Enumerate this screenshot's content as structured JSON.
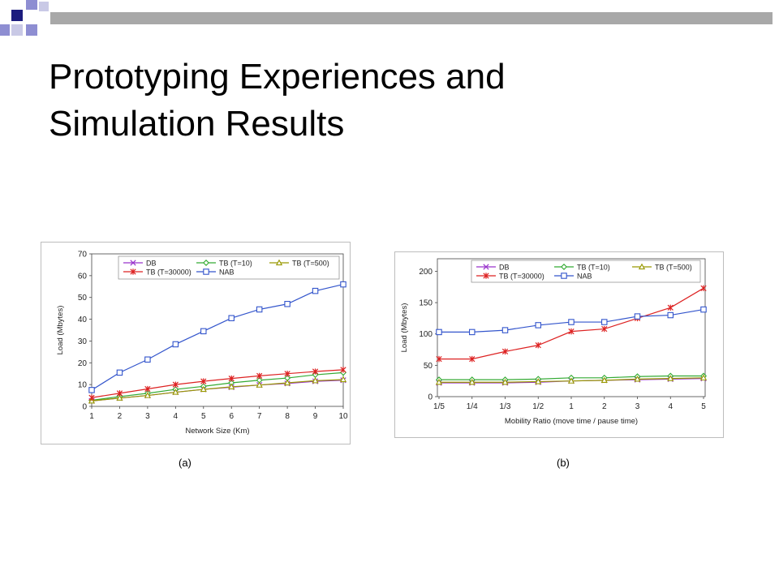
{
  "slide": {
    "title_line1": "Prototyping Experiences and",
    "title_line2": "Simulation Results",
    "accent_colors": {
      "navy": "#1c1c7e",
      "lavender": "#8e8ed2",
      "bar_gray": "#a8a8a8"
    }
  },
  "chart_data": [
    {
      "type": "line",
      "caption": "(a)",
      "xlabel": "Network Size (Km)",
      "ylabel": "Load (Mbytes)",
      "categories": [
        "1",
        "2",
        "3",
        "4",
        "5",
        "6",
        "7",
        "8",
        "9",
        "10"
      ],
      "ylim": [
        0,
        70
      ],
      "yticks": [
        0,
        10,
        20,
        30,
        40,
        50,
        60,
        70
      ],
      "grid": false,
      "legend": "top",
      "series": [
        {
          "name": "DB",
          "color": "#9933cc",
          "marker": "x",
          "values": [
            2.5,
            3.8,
            5,
            6.5,
            7.8,
            8.8,
            9.8,
            10.5,
            11.5,
            12
          ]
        },
        {
          "name": "TB (T=10)",
          "color": "#33aa33",
          "marker": "diamond",
          "values": [
            2.8,
            4.5,
            6,
            7.8,
            9.2,
            10.8,
            12,
            13,
            14.5,
            15.5
          ]
        },
        {
          "name": "TB (T=500)",
          "color": "#999900",
          "marker": "triangle",
          "values": [
            2.5,
            3.8,
            5,
            6.5,
            7.8,
            9,
            9.8,
            10.8,
            11.8,
            12.3
          ]
        },
        {
          "name": "TB (T=30000)",
          "color": "#dd2222",
          "marker": "star",
          "values": [
            4,
            6,
            8,
            10,
            11.5,
            12.8,
            14,
            15,
            16,
            16.8
          ]
        },
        {
          "name": "NAB",
          "color": "#3355cc",
          "marker": "square",
          "values": [
            7.5,
            15.5,
            21.5,
            28.5,
            34.5,
            40.5,
            44.5,
            47,
            53,
            56
          ]
        }
      ]
    },
    {
      "type": "line",
      "caption": "(b)",
      "xlabel": "Mobility Ratio (move time / pause time)",
      "ylabel": "Load (Mbytes)",
      "categories": [
        "1/5",
        "1/4",
        "1/3",
        "1/2",
        "1",
        "2",
        "3",
        "4",
        "5"
      ],
      "ylim": [
        0,
        220
      ],
      "yticks": [
        0,
        50,
        100,
        150,
        200
      ],
      "grid": false,
      "legend": "top",
      "series": [
        {
          "name": "DB",
          "color": "#9933cc",
          "marker": "x",
          "values": [
            22,
            22,
            22,
            23,
            25,
            26,
            27,
            28,
            29
          ]
        },
        {
          "name": "TB (T=10)",
          "color": "#33aa33",
          "marker": "diamond",
          "values": [
            27,
            27,
            27,
            28,
            30,
            30,
            32,
            33,
            33
          ]
        },
        {
          "name": "TB (T=500)",
          "color": "#999900",
          "marker": "triangle",
          "values": [
            23,
            23,
            23,
            24,
            25,
            26,
            28,
            29,
            30
          ]
        },
        {
          "name": "TB (T=30000)",
          "color": "#dd2222",
          "marker": "star",
          "values": [
            60,
            60,
            72,
            82,
            104,
            108,
            125,
            142,
            173
          ]
        },
        {
          "name": "NAB",
          "color": "#3355cc",
          "marker": "square",
          "values": [
            103,
            103,
            106,
            114,
            119,
            119,
            128,
            130,
            139
          ]
        }
      ]
    }
  ]
}
